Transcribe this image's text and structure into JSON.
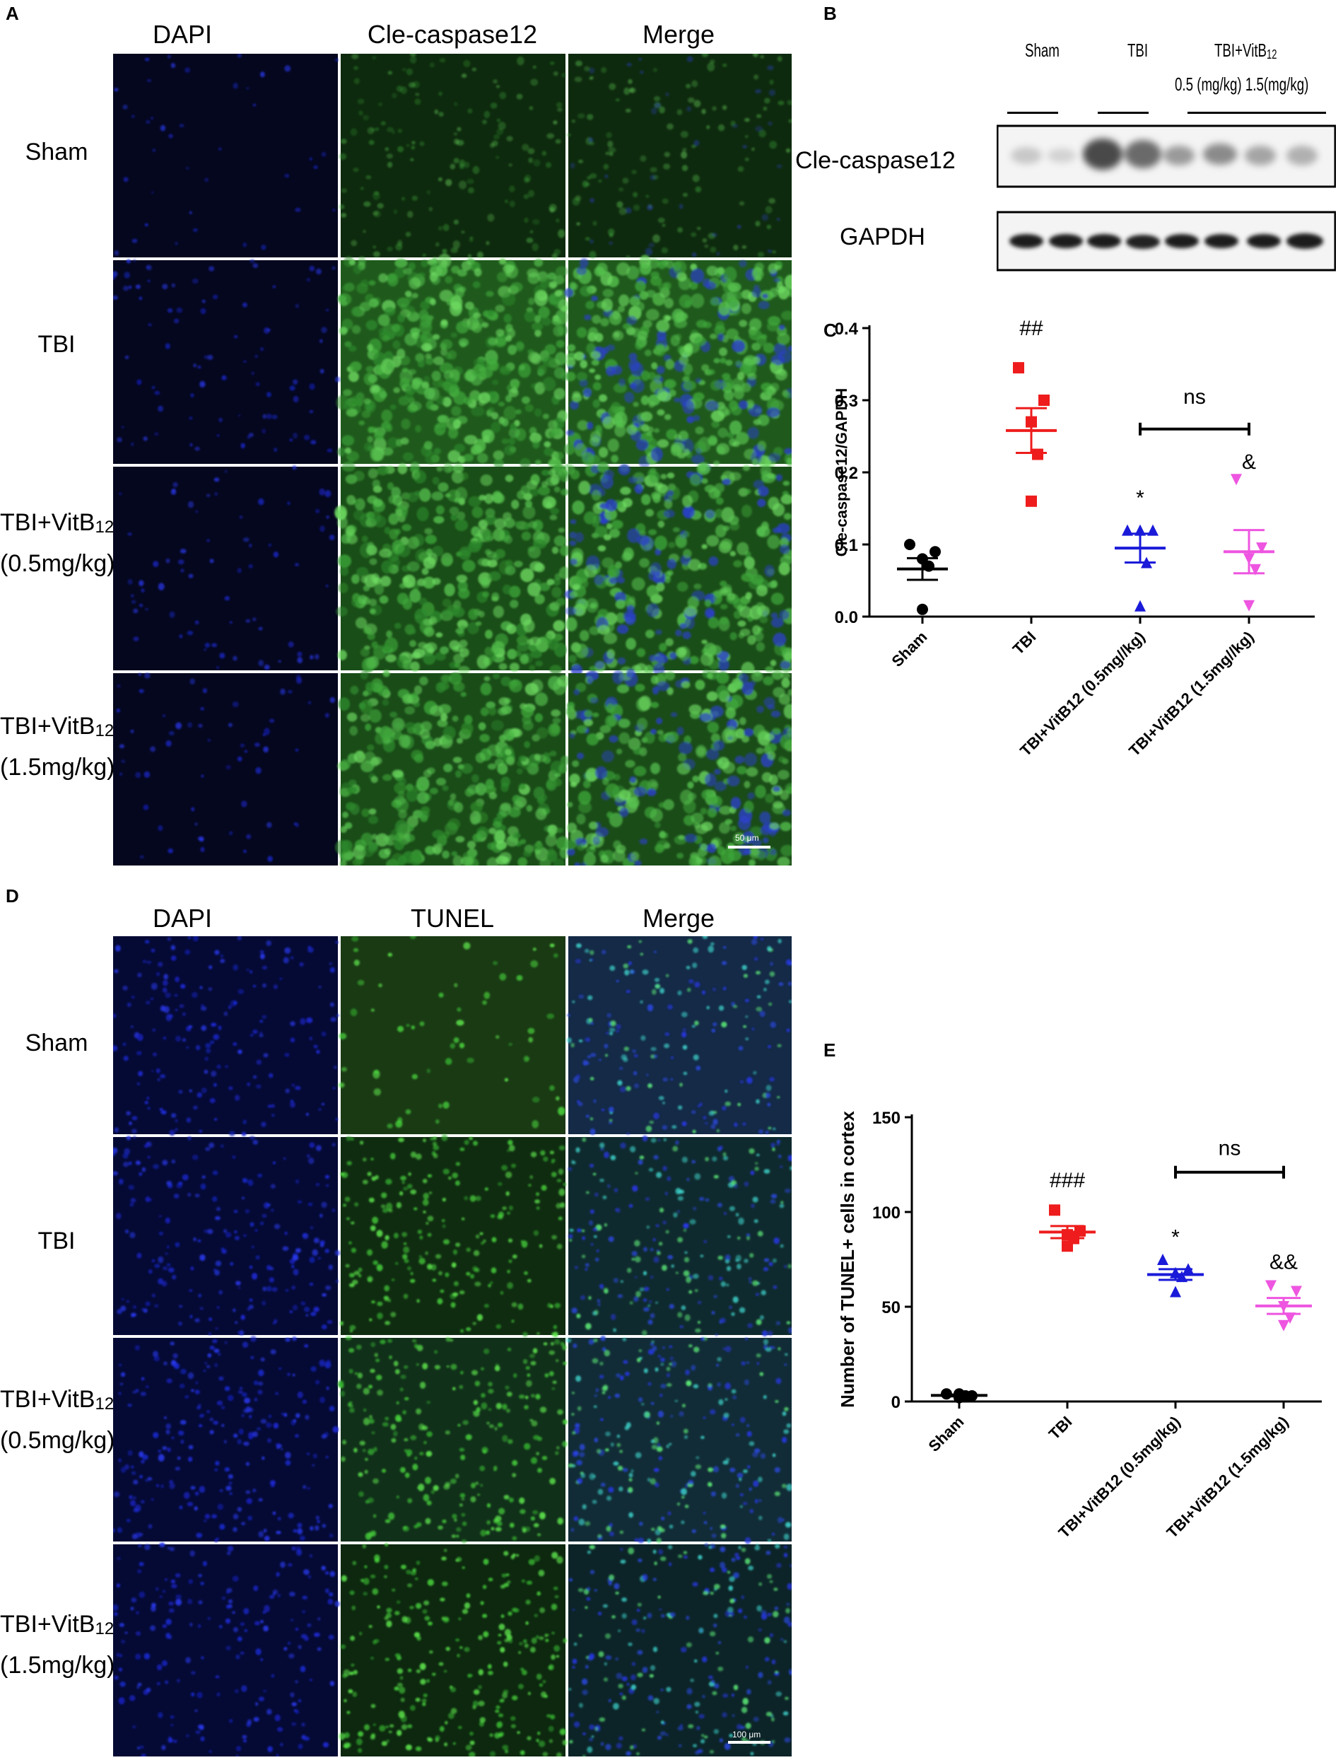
{
  "panels": {
    "A": {
      "label": "A",
      "columns": [
        "DAPI",
        "Cle-caspase12",
        "Merge"
      ],
      "rows": [
        {
          "lines": [
            "Sham"
          ]
        },
        {
          "lines": [
            "TBI"
          ]
        },
        {
          "lines": [
            "TBI+VitB",
            "(0.5mg/kg)"
          ],
          "sub": "12"
        },
        {
          "lines": [
            "TBI+VitB",
            "(1.5mg/kg)"
          ],
          "sub": "12"
        }
      ],
      "scale_bar": "50 μm"
    },
    "B": {
      "label": "B",
      "groups": [
        "Sham",
        "TBI",
        "TBI+VitB"
      ],
      "group3_sub": "12",
      "doses": "0.5 (mg/kg)  1.5(mg/kg)",
      "bands": [
        "Cle-caspase12",
        "GAPDH"
      ]
    },
    "C": {
      "label": "C"
    },
    "D": {
      "label": "D",
      "columns": [
        "DAPI",
        "TUNEL",
        "Merge"
      ],
      "rows": [
        {
          "lines": [
            "Sham"
          ]
        },
        {
          "lines": [
            "TBI"
          ]
        },
        {
          "lines": [
            "TBI+VitB",
            "(0.5mg/kg)"
          ],
          "sub": "12"
        },
        {
          "lines": [
            "TBI+VitB",
            "(1.5mg/kg)"
          ],
          "sub": "12"
        }
      ],
      "scale_bar": "100 μm"
    },
    "E": {
      "label": "E"
    }
  },
  "chart_data": [
    {
      "type": "scatter",
      "panel": "C",
      "ylabel": "Cle-caspase12/GAPDH",
      "ylim": [
        0,
        0.4
      ],
      "yticks": [
        "0.0",
        "0.1",
        "0.2",
        "0.3",
        "0.4"
      ],
      "categories": [
        "Sham",
        "TBI",
        "TBI+VitB12 (0.5mg//kg)",
        "TBI+VitB12 (1.5mg//kg)"
      ],
      "series": [
        {
          "category": "Sham",
          "marker": "circle",
          "color": "#000000",
          "points": [
            0.1,
            0.09,
            0.08,
            0.07,
            0.01
          ],
          "mean": 0.066,
          "sem": 0.015
        },
        {
          "category": "TBI",
          "marker": "square",
          "color": "#ee1c1c",
          "points": [
            0.345,
            0.3,
            0.27,
            0.225,
            0.16
          ],
          "mean": 0.258,
          "sem": 0.031
        },
        {
          "category": "TBI+VitB12 (0.5mg//kg)",
          "marker": "triangle-up",
          "color": "#1a1ad9",
          "points": [
            0.12,
            0.12,
            0.12,
            0.075,
            0.015
          ],
          "mean": 0.095,
          "sem": 0.02
        },
        {
          "category": "TBI+VitB12 (1.5mg//kg)",
          "marker": "triangle-down",
          "color": "#ee55e0",
          "points": [
            0.19,
            0.095,
            0.08,
            0.065,
            0.015
          ],
          "mean": 0.09,
          "sem": 0.03
        }
      ],
      "annotations": [
        {
          "text": "##",
          "category": "TBI",
          "y": 0.39
        },
        {
          "text": "*",
          "category": "TBI+VitB12 (0.5mg//kg)",
          "y": 0.155
        },
        {
          "text": "&",
          "category": "TBI+VitB12 (1.5mg//kg)",
          "y": 0.205
        },
        {
          "text": "ns",
          "y": 0.295
        }
      ],
      "comparison_bar": {
        "from": "TBI+VitB12 (0.5mg//kg)",
        "to": "TBI+VitB12 (1.5mg//kg)",
        "y": 0.26
      }
    },
    {
      "type": "scatter",
      "panel": "E",
      "ylabel": "Number of TUNEL+ cells in cortex",
      "ylim": [
        0,
        150
      ],
      "yticks": [
        "0",
        "50",
        "100",
        "150"
      ],
      "categories": [
        "Sham",
        "TBI",
        "TBI+VitB12 (0.5mg/kg)",
        "TBI+VitB12 (1.5mg/kg)"
      ],
      "series": [
        {
          "category": "Sham",
          "marker": "circle",
          "color": "#000000",
          "points": [
            4,
            3,
            4,
            3,
            2
          ],
          "mean": 3.2,
          "sem": 0.5
        },
        {
          "category": "TBI",
          "marker": "square",
          "color": "#ee1c1c",
          "points": [
            101,
            90,
            88,
            86,
            82
          ],
          "mean": 89.4,
          "sem": 3.2
        },
        {
          "category": "TBI+VitB12 (0.5mg/kg)",
          "marker": "triangle-up",
          "color": "#1a1ad9",
          "points": [
            75,
            70,
            68,
            66,
            58
          ],
          "mean": 67,
          "sem": 2.8
        },
        {
          "category": "TBI+VitB12 (1.5mg/kg)",
          "marker": "triangle-down",
          "color": "#ee55e0",
          "points": [
            61,
            58,
            50,
            44,
            40
          ],
          "mean": 50.4,
          "sem": 4.2
        }
      ],
      "annotations": [
        {
          "text": "###",
          "category": "TBI",
          "y": 113
        },
        {
          "text": "*",
          "category": "TBI+VitB12 (0.5mg/kg)",
          "y": 83
        },
        {
          "text": "&&",
          "category": "TBI+VitB12 (1.5mg/kg)",
          "y": 70
        },
        {
          "text": "ns",
          "y": 130
        }
      ],
      "comparison_bar": {
        "from": "TBI+VitB12 (0.5mg/kg)",
        "to": "TBI+VitB12 (1.5mg/kg)",
        "y": 121
      }
    }
  ]
}
